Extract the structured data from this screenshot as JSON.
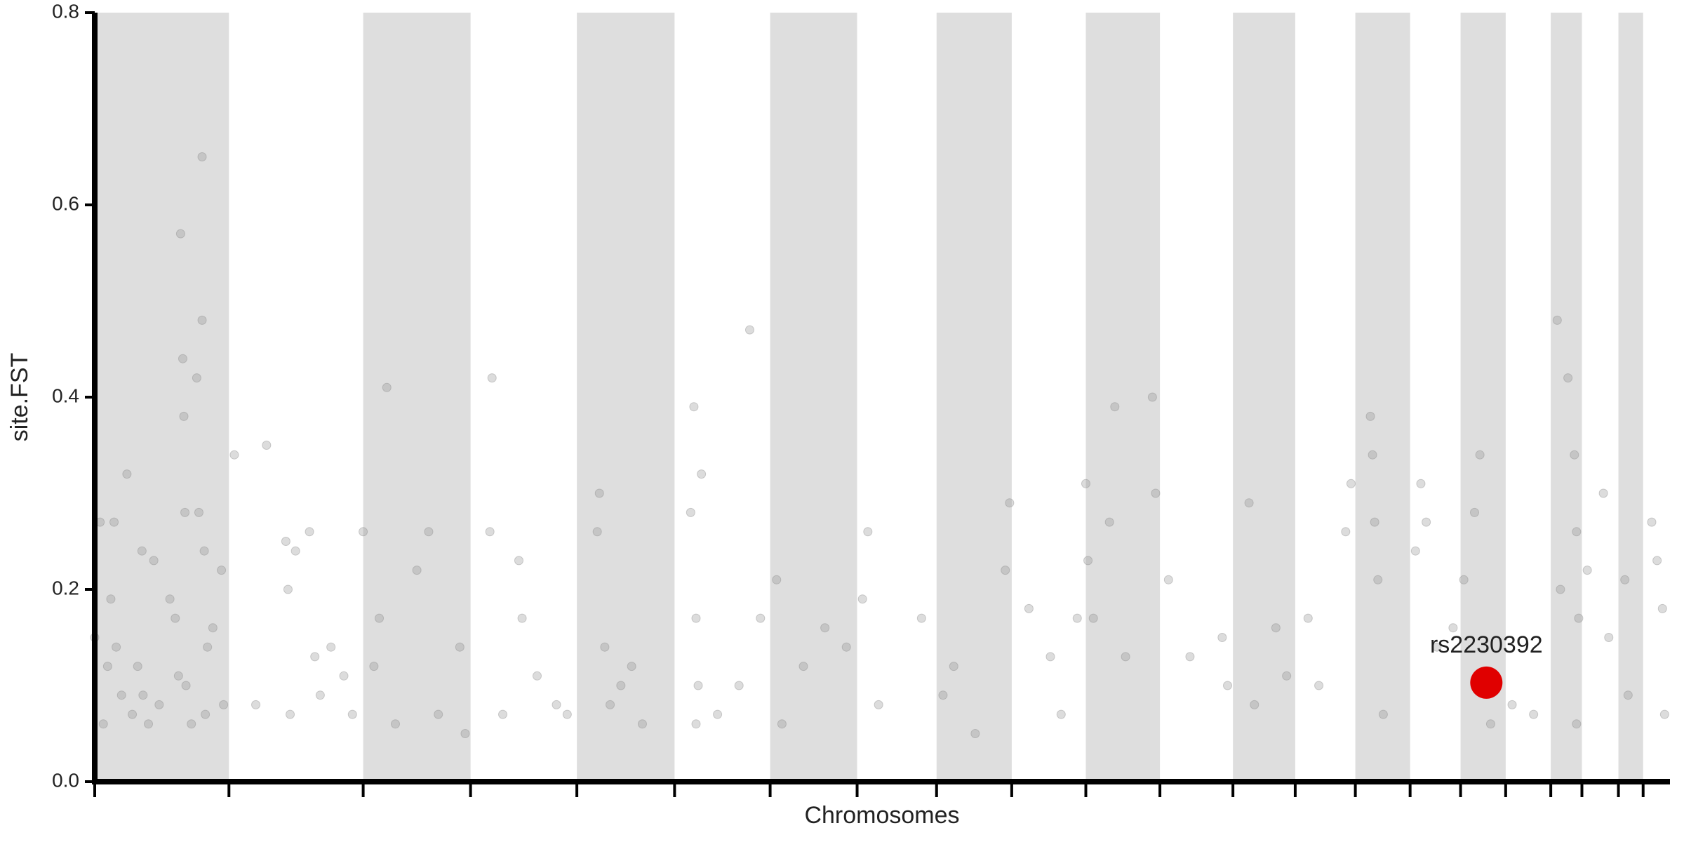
{
  "chart_data": {
    "type": "scatter",
    "y_label": "site.FST",
    "x_label": "Chromosomes",
    "xlim": [
      0,
      1467
    ],
    "ylim": [
      0,
      0.8
    ],
    "yticks": [
      {
        "value": 0,
        "label": "0.0"
      },
      0.2,
      0.4,
      0.6,
      0.8
    ],
    "xticks": [
      0,
      125,
      250,
      350,
      449,
      540,
      629,
      710,
      784,
      854,
      923,
      992,
      1060,
      1118,
      1174,
      1225,
      1272,
      1314,
      1356,
      1385,
      1419,
      1442
    ],
    "band_color": "#dedede",
    "color": "#8a8a8a",
    "x": [
      0,
      5,
      8,
      12,
      15,
      18,
      20,
      25,
      30,
      35,
      40,
      44,
      45,
      50,
      55,
      60,
      70,
      75,
      78,
      80,
      82,
      83,
      84,
      85,
      90,
      95,
      97,
      100,
      100,
      102,
      103,
      105,
      110,
      118,
      120,
      130,
      150,
      160,
      178,
      180,
      182,
      187,
      200,
      205,
      210,
      220,
      232,
      240,
      250,
      260,
      265,
      272,
      280,
      300,
      311,
      320,
      340,
      345,
      370,
      368,
      380,
      395,
      398,
      412,
      430,
      440,
      468,
      470,
      475,
      480,
      490,
      500,
      510,
      555,
      558,
      560,
      562,
      565,
      560,
      580,
      600,
      610,
      620,
      635,
      640,
      660,
      680,
      700,
      715,
      720,
      730,
      770,
      790,
      800,
      820,
      848,
      852,
      870,
      890,
      900,
      915,
      923,
      925,
      930,
      945,
      950,
      960,
      985,
      988,
      1000,
      1020,
      1050,
      1055,
      1075,
      1080,
      1100,
      1110,
      1130,
      1140,
      1165,
      1170,
      1188,
      1190,
      1192,
      1195,
      1200,
      1230,
      1235,
      1240,
      1250,
      1265,
      1275,
      1290,
      1285,
      1300,
      1320,
      1340,
      1362,
      1365,
      1372,
      1378,
      1380,
      1382,
      1380,
      1390,
      1405,
      1410,
      1425,
      1428,
      1450,
      1455,
      1460,
      1462
    ],
    "values": [
      0.15,
      0.27,
      0.06,
      0.12,
      0.19,
      0.27,
      0.14,
      0.09,
      0.32,
      0.07,
      0.12,
      0.24,
      0.09,
      0.06,
      0.23,
      0.08,
      0.19,
      0.17,
      0.11,
      0.57,
      0.44,
      0.38,
      0.28,
      0.1,
      0.06,
      0.42,
      0.28,
      0.48,
      0.65,
      0.24,
      0.07,
      0.14,
      0.16,
      0.22,
      0.08,
      0.34,
      0.08,
      0.35,
      0.25,
      0.2,
      0.07,
      0.24,
      0.26,
      0.13,
      0.09,
      0.14,
      0.11,
      0.07,
      0.26,
      0.12,
      0.17,
      0.41,
      0.06,
      0.22,
      0.26,
      0.07,
      0.14,
      0.05,
      0.42,
      0.26,
      0.07,
      0.23,
      0.17,
      0.11,
      0.08,
      0.07,
      0.26,
      0.3,
      0.14,
      0.08,
      0.1,
      0.12,
      0.06,
      0.28,
      0.39,
      0.17,
      0.1,
      0.32,
      0.06,
      0.07,
      0.1,
      0.47,
      0.17,
      0.21,
      0.06,
      0.12,
      0.16,
      0.14,
      0.19,
      0.26,
      0.08,
      0.17,
      0.09,
      0.12,
      0.05,
      0.22,
      0.29,
      0.18,
      0.13,
      0.07,
      0.17,
      0.31,
      0.23,
      0.17,
      0.27,
      0.39,
      0.13,
      0.4,
      0.3,
      0.21,
      0.13,
      0.15,
      0.1,
      0.29,
      0.08,
      0.16,
      0.11,
      0.17,
      0.1,
      0.26,
      0.31,
      0.38,
      0.34,
      0.27,
      0.21,
      0.07,
      0.24,
      0.31,
      0.27,
      0.14,
      0.16,
      0.21,
      0.34,
      0.28,
      0.06,
      0.08,
      0.07,
      0.48,
      0.2,
      0.42,
      0.34,
      0.26,
      0.17,
      0.06,
      0.22,
      0.3,
      0.15,
      0.21,
      0.09,
      0.27,
      0.23,
      0.18,
      0.07
    ],
    "highlight": {
      "label": "rs2230392",
      "x": 1296,
      "y": 0.103,
      "color": "#e00000"
    }
  }
}
